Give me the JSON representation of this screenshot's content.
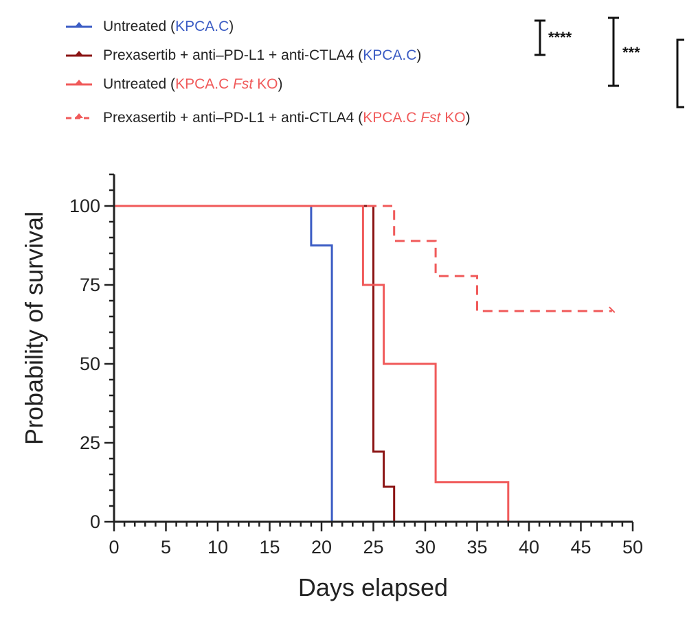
{
  "chart_data": {
    "type": "line",
    "step": true,
    "xlabel": "Days elapsed",
    "ylabel": "Probability of survival",
    "xlim": [
      0,
      50
    ],
    "ylim": [
      0,
      110
    ],
    "xticks": [
      0,
      5,
      10,
      15,
      20,
      25,
      30,
      35,
      40,
      45,
      50
    ],
    "yticks": [
      0,
      25,
      50,
      75,
      100
    ],
    "grid": false,
    "legend_position": "top",
    "series": [
      {
        "legend_prefix": "Untreated (",
        "legend_group": "KPCA.C",
        "legend_suffix": ")",
        "color": "#3b5cc4",
        "group_color": "#3b5cc4",
        "dash": false,
        "x": [
          0,
          19,
          21
        ],
        "y": [
          100,
          87.5,
          0
        ],
        "censored": []
      },
      {
        "legend_prefix": "Prexasertib + anti–PD-L1 + anti-CTLA4 (",
        "legend_group": "KPCA.C",
        "legend_suffix": ")",
        "color": "#8b1414",
        "group_color": "#3b5cc4",
        "dash": false,
        "x": [
          0,
          25,
          26,
          27
        ],
        "y": [
          100,
          22.2,
          11.1,
          0
        ],
        "censored": []
      },
      {
        "legend_prefix": "Untreated (",
        "legend_group": "KPCA.C",
        "legend_italic": "Fst",
        "legend_ko": "KO",
        "legend_suffix": ")",
        "color": "#f05a5a",
        "group_color": "#f05a5a",
        "dash": false,
        "x": [
          0,
          24,
          25,
          26,
          31,
          38
        ],
        "y": [
          100,
          75,
          75,
          50,
          12.5,
          0
        ],
        "censored": []
      },
      {
        "legend_prefix": "Prexasertib + anti–PD-L1 + anti-CTLA4 (",
        "legend_group": "KPCA.C",
        "legend_italic": "Fst",
        "legend_ko": "KO",
        "legend_suffix": ")",
        "color": "#f05a5a",
        "group_color": "#f05a5a",
        "dash": true,
        "x": [
          0,
          27,
          31,
          35
        ],
        "y": [
          100,
          88.9,
          77.8,
          66.7
        ],
        "end_x": 48,
        "censored": [
          48
        ]
      }
    ],
    "significance": [
      "****",
      "***"
    ]
  }
}
